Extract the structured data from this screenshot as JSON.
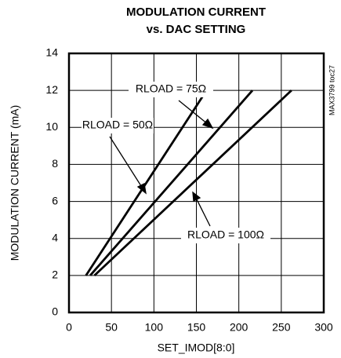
{
  "chart_data": {
    "type": "line",
    "title": "MODULATION CURRENT",
    "subtitle": "vs. DAC SETTING",
    "xlabel": "SET_IMOD[8:0]",
    "ylabel": "MODULATION CURRENT (mA)",
    "annotation": "MAX3799 toc27",
    "xlim": [
      0,
      300
    ],
    "xticks": [
      0,
      50,
      100,
      150,
      200,
      250,
      300
    ],
    "ylim": [
      0,
      14
    ],
    "yticks": [
      0,
      2,
      4,
      6,
      8,
      10,
      12,
      14
    ],
    "grid": true,
    "series": [
      {
        "name": "RLOAD = 50Ω",
        "color": "#000000",
        "x": [
          20,
          162
        ],
        "values": [
          2,
          12
        ]
      },
      {
        "name": "RLOAD = 75Ω",
        "color": "#000000",
        "x": [
          25,
          216
        ],
        "values": [
          2,
          12
        ]
      },
      {
        "name": "RLOAD = 100Ω",
        "color": "#000000",
        "x": [
          30,
          262
        ],
        "values": [
          2,
          12
        ]
      }
    ]
  }
}
